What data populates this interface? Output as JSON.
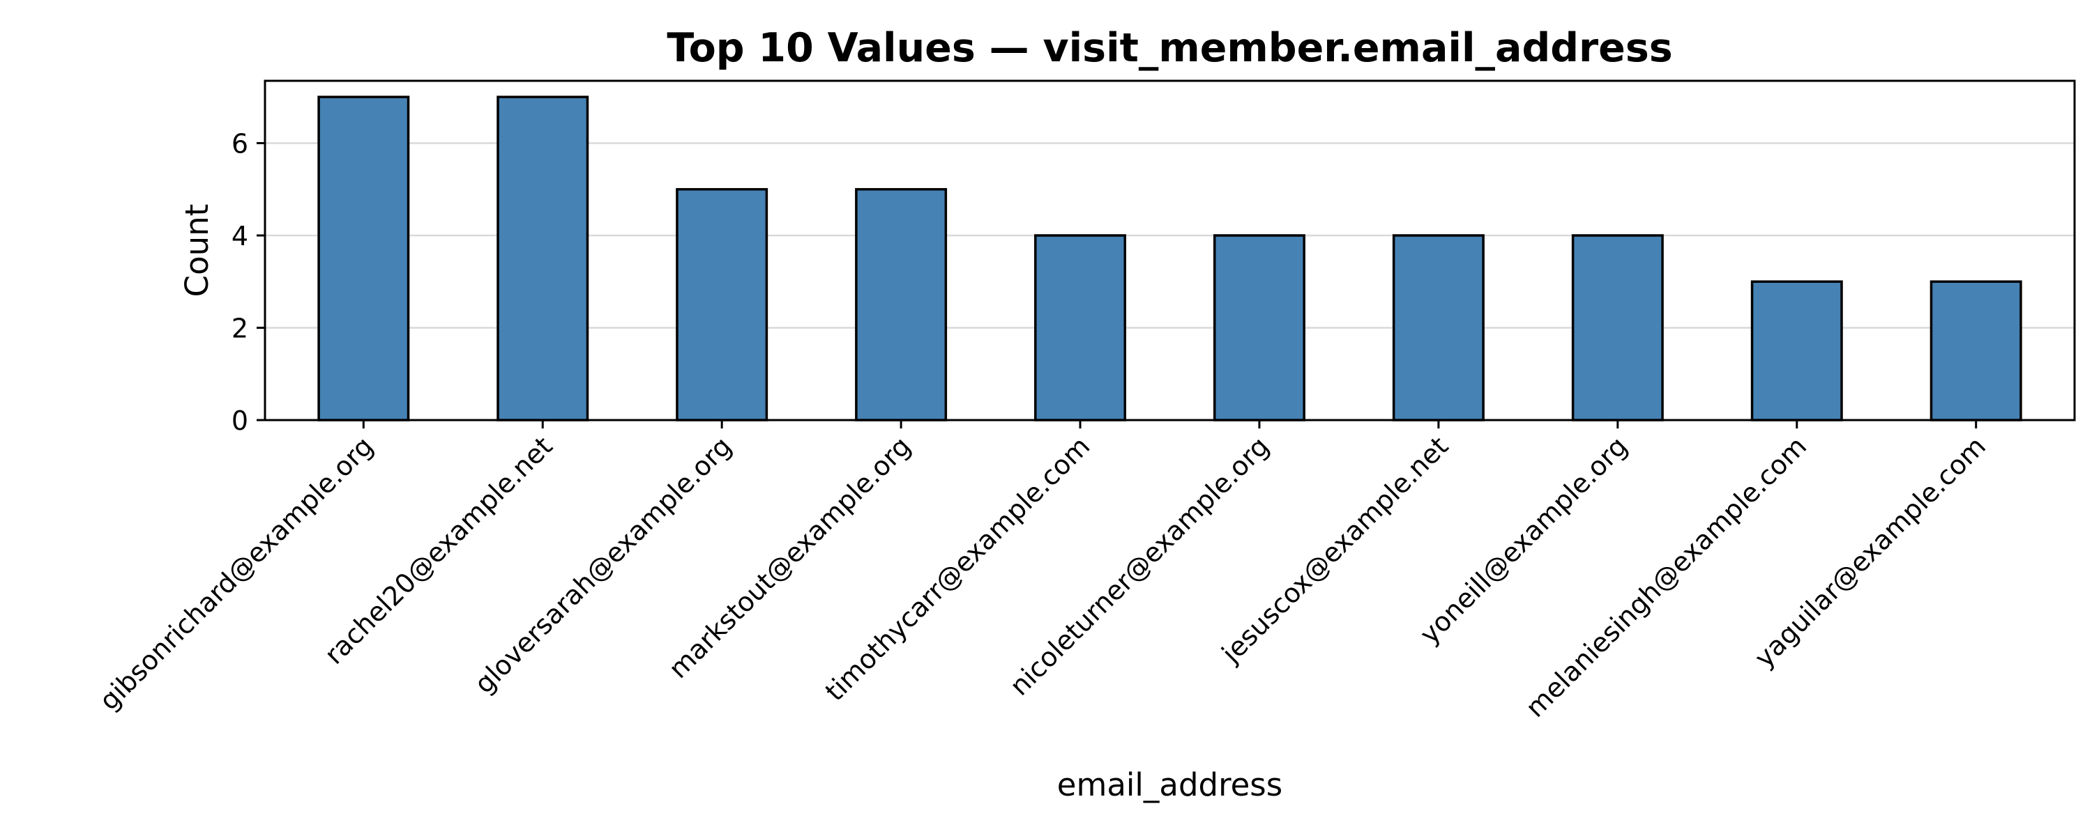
{
  "chart_data": {
    "type": "bar",
    "title": "Top 10 Values — visit_member.email_address",
    "xlabel": "email_address",
    "ylabel": "Count",
    "categories": [
      "gibsonrichard@example.org",
      "rachel20@example.net",
      "gloversarah@example.org",
      "markstout@example.org",
      "timothycarr@example.com",
      "nicoleturner@example.org",
      "jesuscox@example.net",
      "yoneill@example.org",
      "melaniesingh@example.com",
      "yaguilar@example.com"
    ],
    "values": [
      7,
      7,
      5,
      5,
      4,
      4,
      4,
      4,
      3,
      3
    ],
    "ylim": [
      0,
      7.35
    ],
    "yticks": [
      0,
      2,
      4,
      6
    ],
    "grid": "y",
    "bar_color": "#4682b4",
    "legend": "none"
  }
}
